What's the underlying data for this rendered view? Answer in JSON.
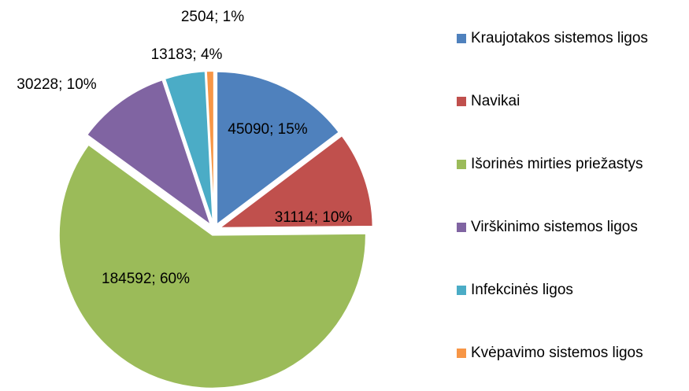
{
  "chart_data": {
    "type": "pie",
    "categories": [
      "Kraujotakos sistemos ligos",
      "Navikai",
      "Išorinės mirties priežastys",
      "Virškinimo sistemos ligos",
      "Infekcinės ligos",
      "Kvėpavimo sistemos ligos"
    ],
    "values": [
      45090,
      31114,
      184592,
      30228,
      13183,
      2504
    ],
    "value_labels": [
      "45090; 15%",
      "31114; 10%",
      "184592; 60%",
      "30228; 10%",
      "13183; 4%",
      "2504; 1%"
    ],
    "colors": [
      "#4f81bd",
      "#c0504d",
      "#9bbb59",
      "#8064a2",
      "#4bacc6",
      "#f79646"
    ],
    "legend": "right"
  }
}
